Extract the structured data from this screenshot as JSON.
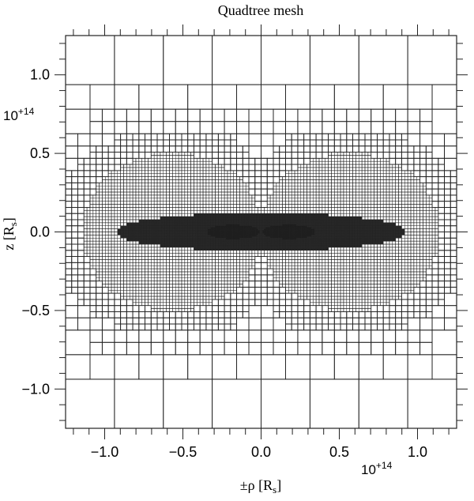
{
  "title": "Quadtree mesh",
  "xaxis": {
    "label": "±ρ [R",
    "label_sub": "s",
    "label_close": "]",
    "exponent_base": "10",
    "exponent_power": "+14",
    "range": [
      -1.25,
      1.25
    ],
    "major_ticks": [
      -1.0,
      -0.5,
      0.0,
      0.5,
      1.0
    ],
    "major_tick_labels": [
      "−1.0",
      "−0.5",
      "0.0",
      "0.5",
      "1.0"
    ],
    "minor_step": 0.1
  },
  "yaxis": {
    "label": "z [R",
    "label_sub": "s",
    "label_close": "]",
    "exponent_base": "10",
    "exponent_power": "+14",
    "range": [
      -1.25,
      1.25
    ],
    "major_ticks": [
      -1.0,
      -0.5,
      0.0,
      0.5,
      1.0
    ],
    "major_tick_labels": [
      "−1.0",
      "−0.5",
      "0.0",
      "0.5",
      "1.0"
    ],
    "minor_step": 0.1
  },
  "chart_data": {
    "type": "mesh",
    "description_of_structure": "adaptive quadtree subdivision of a square domain, refined toward a thick outer torus-like region, a thin disk near the midplane and dense cores near the axis",
    "domain_extent": [
      -1.25,
      1.25
    ],
    "max_depth": 7,
    "colors": {
      "line": "#222222",
      "background": "#ffffff"
    }
  }
}
